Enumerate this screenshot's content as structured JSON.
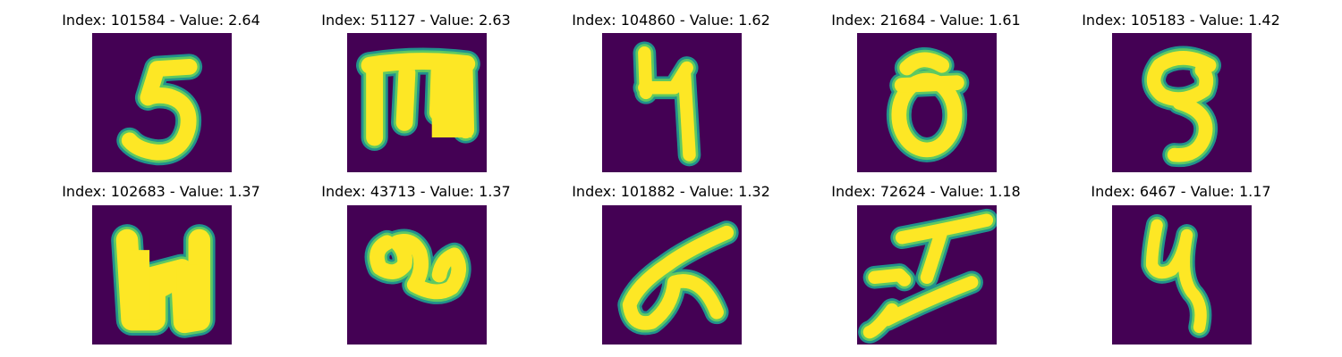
{
  "figure": {
    "colors": {
      "background": "#440154",
      "edge_outer": "#21918c",
      "edge_mid": "#5ec962",
      "stroke": "#fde725"
    },
    "panels": [
      {
        "title": "Index: 101584 - Value: 2.64",
        "glyph": "5"
      },
      {
        "title": "Index: 51127 - Value: 2.63",
        "glyph": "m"
      },
      {
        "title": "Index: 104860 - Value: 1.62",
        "glyph": "4"
      },
      {
        "title": "Index: 21684 - Value: 1.61",
        "glyph": "0"
      },
      {
        "title": "Index: 105183 - Value: 1.42",
        "glyph": "9"
      },
      {
        "title": "Index: 102683 - Value: 1.37",
        "glyph": "N"
      },
      {
        "title": "Index: 43713 - Value: 1.37",
        "glyph": "a"
      },
      {
        "title": "Index: 101882 - Value: 1.32",
        "glyph": "alpha"
      },
      {
        "title": "Index: 72624 - Value: 1.18",
        "glyph": "I"
      },
      {
        "title": "Index: 6467 - Value: 1.17",
        "glyph": "4b"
      }
    ]
  }
}
